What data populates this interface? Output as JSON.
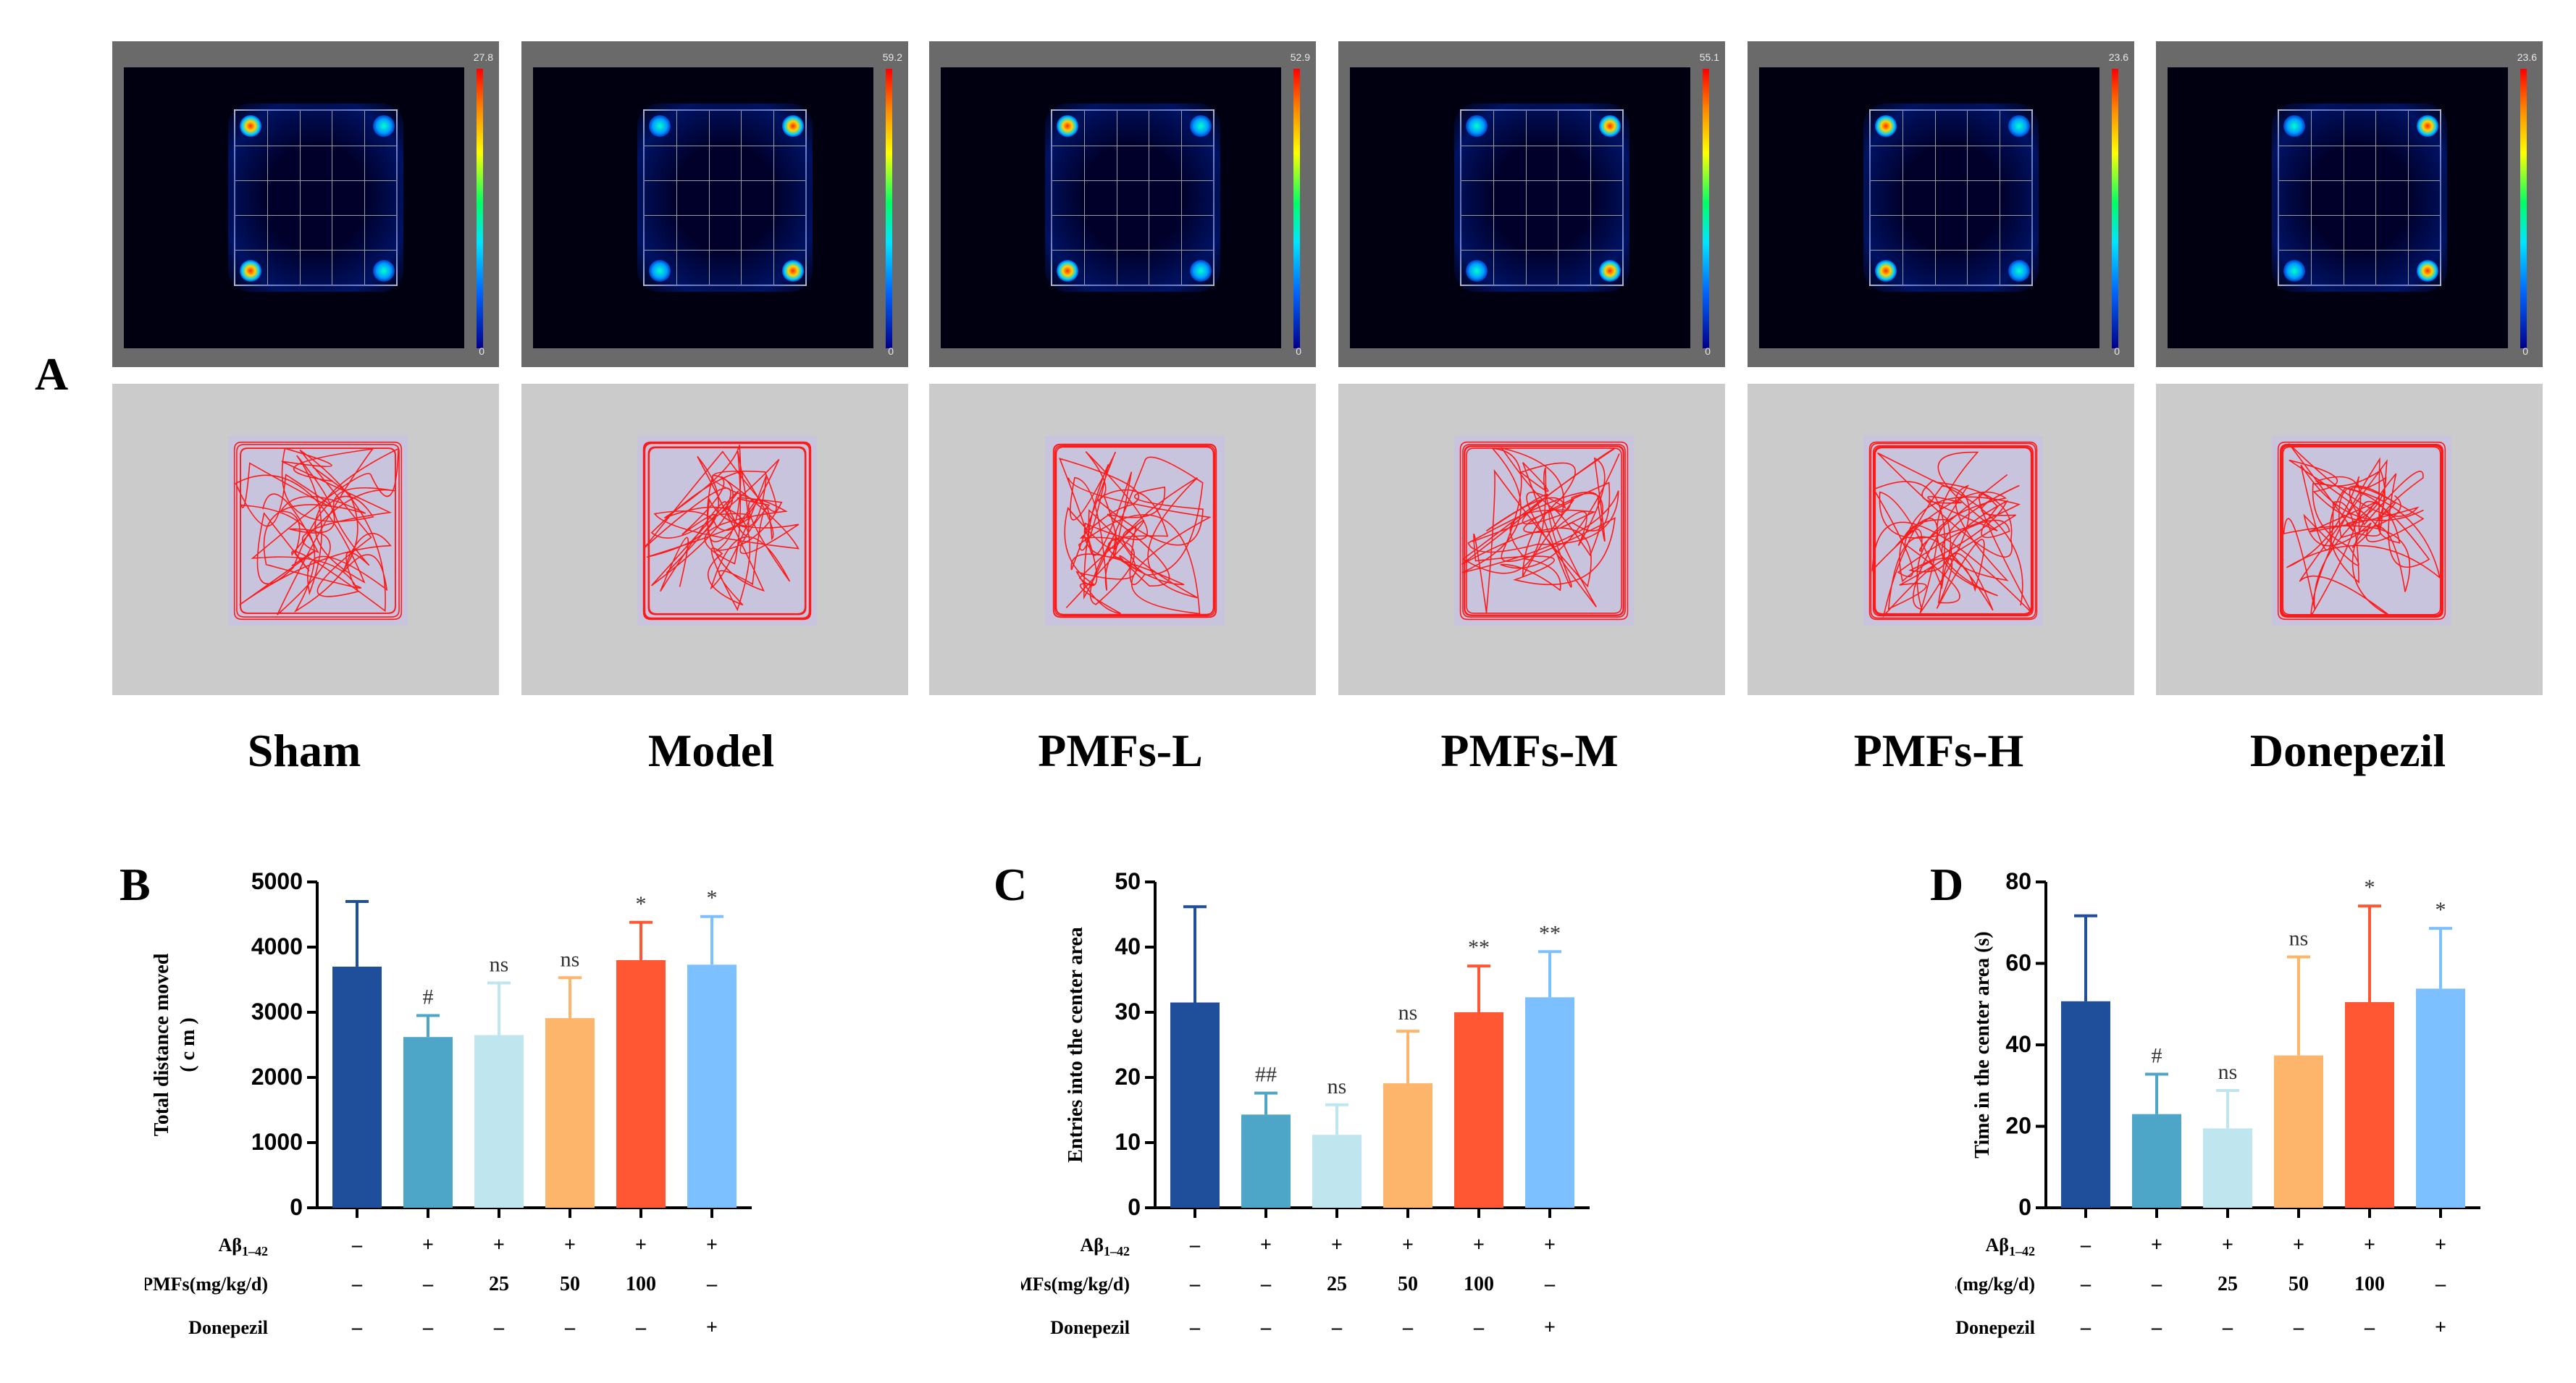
{
  "figure": {
    "panel_labels": {
      "A": "A",
      "B": "B",
      "C": "C",
      "D": "D"
    },
    "groups": [
      "Sham",
      "Model",
      "PMFs-L",
      "PMFs-M",
      "PMFs-H",
      "Donepezil"
    ],
    "heatmap_max_values": [
      "27.8",
      "59.2",
      "52.9",
      "55.1",
      "23.6",
      "23.6"
    ],
    "heatmap_min_value": "0"
  },
  "chart_data": [
    {
      "panel": "B",
      "type": "bar",
      "ylabel_line1": "Total distance moved",
      "ylabel_line2": "( c m )",
      "ylim": [
        0,
        5000
      ],
      "yticks": [
        0,
        1000,
        2000,
        3000,
        4000,
        5000
      ],
      "values": [
        3700,
        2620,
        2650,
        2910,
        3800,
        3730
      ],
      "errors": [
        1000,
        330,
        800,
        620,
        580,
        740
      ],
      "significance": [
        "",
        "#",
        "ns",
        "ns",
        "*",
        "*"
      ]
    },
    {
      "panel": "C",
      "type": "bar",
      "ylabel_line1": "Entries into the center area",
      "ylabel_line2": "",
      "ylim": [
        0,
        50
      ],
      "yticks": [
        0,
        10,
        20,
        30,
        40,
        50
      ],
      "values": [
        31.5,
        14.3,
        11.2,
        19.1,
        30.0,
        32.3
      ],
      "errors": [
        14.7,
        3.3,
        4.6,
        8.0,
        7.1,
        7.0
      ],
      "significance": [
        "",
        "##",
        "ns",
        "ns",
        "**",
        "**"
      ]
    },
    {
      "panel": "D",
      "type": "bar",
      "ylabel_line1": "Time in the center area (s)",
      "ylabel_line2": "",
      "ylim": [
        0,
        80
      ],
      "yticks": [
        0,
        20,
        40,
        60,
        80
      ],
      "values": [
        50.7,
        23.0,
        19.5,
        37.4,
        50.5,
        53.8
      ],
      "errors": [
        21.0,
        9.8,
        9.3,
        24.2,
        23.6,
        14.8
      ],
      "significance": [
        "",
        "#",
        "ns",
        "ns",
        "*",
        "*"
      ]
    }
  ],
  "bar_colors": [
    "#1f4e9a",
    "#4da6c8",
    "#bfe6ef",
    "#fdb56b",
    "#ff5733",
    "#7cc0ff"
  ],
  "treatment_table": {
    "rows": [
      {
        "label": "Aβ1–42",
        "label_main": "Aβ",
        "label_sub": "1–42",
        "cells": [
          "–",
          "+",
          "+",
          "+",
          "+",
          "+"
        ]
      },
      {
        "label": "PMFs(mg/kg/d)",
        "label_main": "PMFs(mg/kg/d)",
        "label_sub": "",
        "cells": [
          "–",
          "–",
          "25",
          "50",
          "100",
          "–"
        ]
      },
      {
        "label": "Donepezil",
        "label_main": "Donepezil",
        "label_sub": "",
        "cells": [
          "–",
          "–",
          "–",
          "–",
          "–",
          "+"
        ]
      }
    ]
  }
}
